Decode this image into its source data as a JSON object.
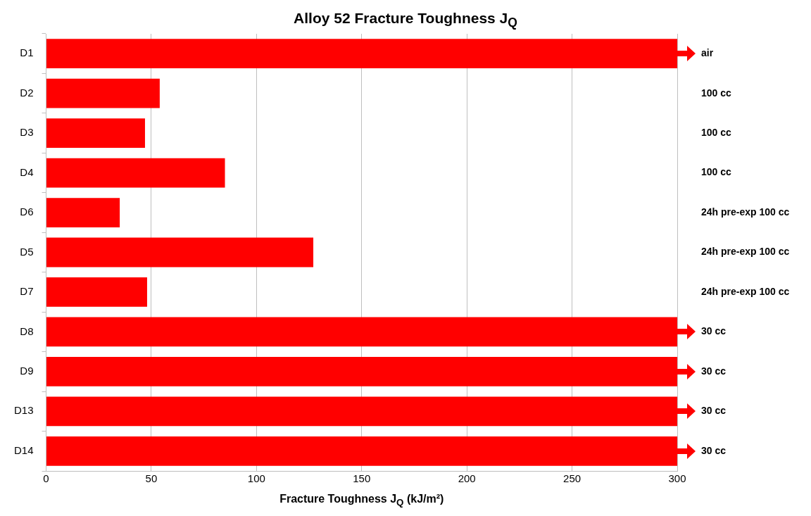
{
  "chart_data": {
    "type": "bar",
    "orientation": "horizontal",
    "title": "Alloy 52 Fracture Toughness J$_{Q}$",
    "xlabel": "Fracture Toughness J$_{Q}$ (kJ/m²)",
    "categories": [
      "D1",
      "D2",
      "D3",
      "D4",
      "D6",
      "D5",
      "D7",
      "D8",
      "D9",
      "D13",
      "D14"
    ],
    "values": [
      300,
      54,
      47,
      85,
      35,
      127,
      48,
      300,
      300,
      300,
      300
    ],
    "color": "#ff0000",
    "xlim": [
      0,
      300
    ],
    "xticks": [
      0,
      50,
      100,
      150,
      200,
      250,
      300
    ],
    "grid": "x",
    "legend": false,
    "annotations": [
      "air",
      "100 cc",
      "100 cc",
      "100 cc",
      "24h pre-exp 100 cc",
      "24h pre-exp 100 cc",
      "24h pre-exp 100 cc",
      "30 cc",
      "30 cc",
      "30 cc",
      "30 cc"
    ]
  }
}
